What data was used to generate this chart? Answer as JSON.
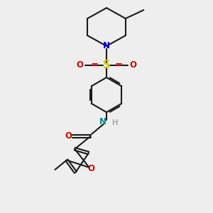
{
  "background_color": "#eeeeee",
  "bond_color": "#1a1a1a",
  "bond_width": 1.5,
  "atom_colors": {
    "N_pip": "#0000cc",
    "N_amide": "#008888",
    "S": "#cccc00",
    "O": "#cc0000",
    "H": "#888888"
  },
  "font_size": 8.5,
  "xlim": [
    0,
    10
  ],
  "ylim": [
    0,
    10
  ]
}
